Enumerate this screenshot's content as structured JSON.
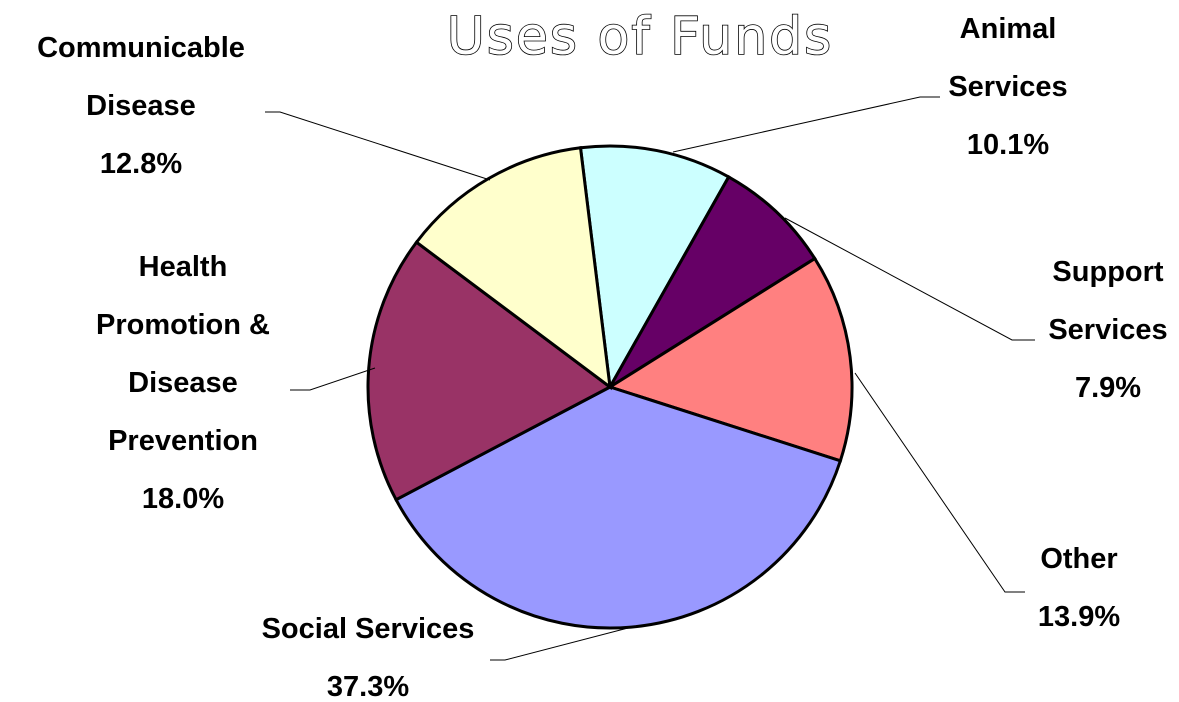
{
  "chart_data": {
    "type": "pie",
    "title": "Uses of Funds",
    "slices": [
      {
        "label_lines": [
          "Animal",
          "Services"
        ],
        "value_label": "10.1%",
        "value": 10.1,
        "color": "#ccffff"
      },
      {
        "label_lines": [
          "Support",
          "Services"
        ],
        "value_label": "7.9%",
        "value": 7.9,
        "color": "#660066"
      },
      {
        "label_lines": [
          "Other"
        ],
        "value_label": "13.9%",
        "value": 13.9,
        "color": "#ff8080"
      },
      {
        "label_lines": [
          "Social Services"
        ],
        "value_label": "37.3%",
        "value": 37.3,
        "color": "#9999ff"
      },
      {
        "label_lines": [
          "Health",
          "Promotion &",
          "Disease",
          "Prevention"
        ],
        "value_label": "18.0%",
        "value": 18.0,
        "color": "#993366"
      },
      {
        "label_lines": [
          "Communicable",
          "Disease"
        ],
        "value_label": "12.8%",
        "value": 12.8,
        "color": "#ffffcc"
      }
    ],
    "legend": "none"
  }
}
